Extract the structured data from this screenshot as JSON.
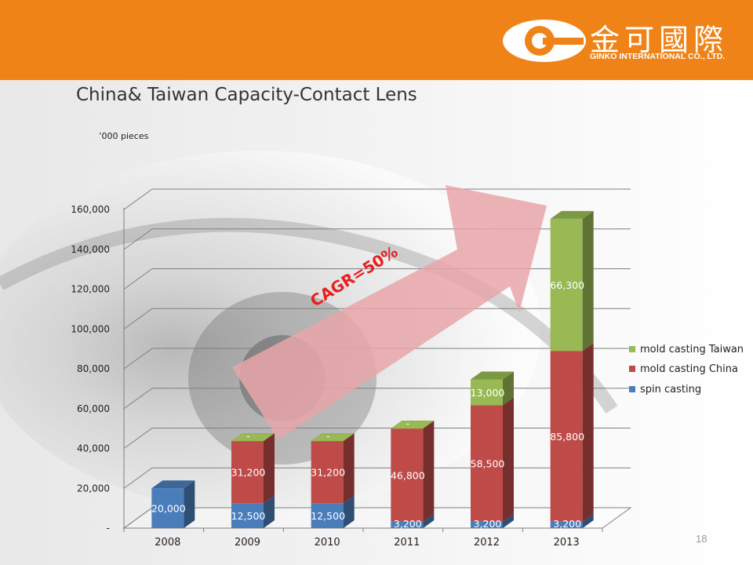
{
  "header": {
    "company_cn": "金可國際",
    "company_en": "GINKO INTERNATIONAL CO., LTD.",
    "logo_icon": "ginko-g-logo-icon",
    "background_color": "#ef8318"
  },
  "slide": {
    "title": "China& Taiwan Capacity-Contact Lens",
    "unit": "’000 pieces",
    "page_number": "18",
    "annotation": "CAGR=50%"
  },
  "chart_data": {
    "type": "bar",
    "stacked": true,
    "three_d": true,
    "categories": [
      "2008",
      "2009",
      "2010",
      "2011",
      "2012",
      "2013"
    ],
    "series": [
      {
        "name": "spin casting",
        "color": "#4a7ebb",
        "values": [
          20000,
          12500,
          12500,
          3200,
          3200,
          3200
        ],
        "labels": [
          "20,000",
          "12,500",
          "12,500",
          "3,200",
          "3,200",
          "3,200"
        ]
      },
      {
        "name": "mold casting China",
        "color": "#be4b48",
        "values": [
          0,
          31200,
          31200,
          46800,
          58500,
          85800
        ],
        "labels": [
          "",
          "31,200",
          "31,200",
          "46,800",
          "58,500",
          "85,800"
        ]
      },
      {
        "name": "mold casting Taiwan",
        "color": "#98b954",
        "values": [
          0,
          0,
          0,
          0,
          13000,
          66300
        ],
        "labels": [
          "",
          "-",
          "-",
          "-",
          "13,000",
          "66,300"
        ]
      }
    ],
    "y_ticks": [
      "-",
      "20,000",
      "40,000",
      "60,000",
      "80,000",
      "100,000",
      "120,000",
      "140,000",
      "160,000"
    ],
    "y_tick_values": [
      0,
      20000,
      40000,
      60000,
      80000,
      100000,
      120000,
      140000,
      160000
    ],
    "ylim": [
      0,
      160000
    ],
    "grid": true,
    "legend_position": "right",
    "legend_order": [
      "mold casting Taiwan",
      "mold casting China",
      "spin casting"
    ]
  }
}
